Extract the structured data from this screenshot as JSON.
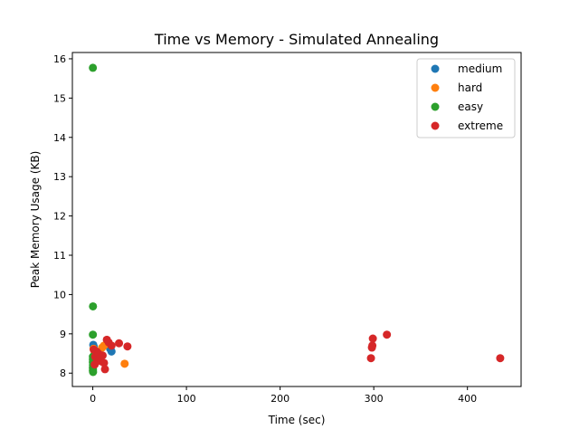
{
  "chart_data": {
    "type": "scatter",
    "title": "Time vs Memory - Simulated Annealing",
    "xlabel": "Time (sec)",
    "ylabel": "Peak Memory Usage (KB)",
    "xlim": [
      -21.8,
      457.3
    ],
    "ylim": [
      7.66,
      16.16
    ],
    "xticks": [
      0,
      100,
      200,
      300,
      400
    ],
    "yticks": [
      8,
      9,
      10,
      11,
      12,
      13,
      14,
      15,
      16
    ],
    "grid": false,
    "legend_position": "top-right",
    "series": [
      {
        "name": "medium",
        "color": "#1f77b4",
        "points": [
          [
            0.5,
            8.72
          ],
          [
            1.0,
            8.68
          ],
          [
            2.0,
            8.55
          ],
          [
            1.5,
            8.4
          ],
          [
            3.0,
            8.3
          ],
          [
            18.5,
            8.62
          ],
          [
            20.0,
            8.55
          ]
        ]
      },
      {
        "name": "hard",
        "color": "#ff7f0e",
        "points": [
          [
            0.8,
            8.62
          ],
          [
            2.0,
            8.5
          ],
          [
            5.0,
            8.45
          ],
          [
            8.0,
            8.4
          ],
          [
            10.0,
            8.65
          ],
          [
            12.0,
            8.7
          ],
          [
            34.0,
            8.24
          ],
          [
            1.2,
            8.28
          ]
        ]
      },
      {
        "name": "easy",
        "color": "#2ca02c",
        "points": [
          [
            0.1,
            15.77
          ],
          [
            0.2,
            9.7
          ],
          [
            0.1,
            8.98
          ],
          [
            0.1,
            8.42
          ],
          [
            0.1,
            8.35
          ],
          [
            0.1,
            8.28
          ],
          [
            0.2,
            8.2
          ],
          [
            0.1,
            8.14
          ],
          [
            0.2,
            8.1
          ],
          [
            0.1,
            8.06
          ],
          [
            0.3,
            8.03
          ]
        ]
      },
      {
        "name": "extreme",
        "color": "#d62728",
        "points": [
          [
            1.0,
            8.6
          ],
          [
            2.5,
            8.42
          ],
          [
            4.0,
            8.55
          ],
          [
            5.0,
            8.35
          ],
          [
            6.0,
            8.5
          ],
          [
            7.5,
            8.38
          ],
          [
            9.0,
            8.3
          ],
          [
            10.5,
            8.45
          ],
          [
            12.0,
            8.26
          ],
          [
            13.0,
            8.1
          ],
          [
            15.0,
            8.85
          ],
          [
            17.0,
            8.78
          ],
          [
            20.0,
            8.7
          ],
          [
            28.0,
            8.76
          ],
          [
            37.0,
            8.68
          ],
          [
            2.0,
            8.22
          ],
          [
            297.0,
            8.38
          ],
          [
            298.0,
            8.65
          ],
          [
            298.5,
            8.7
          ],
          [
            299.0,
            8.88
          ],
          [
            314.0,
            8.98
          ],
          [
            435.0,
            8.38
          ]
        ]
      }
    ]
  }
}
